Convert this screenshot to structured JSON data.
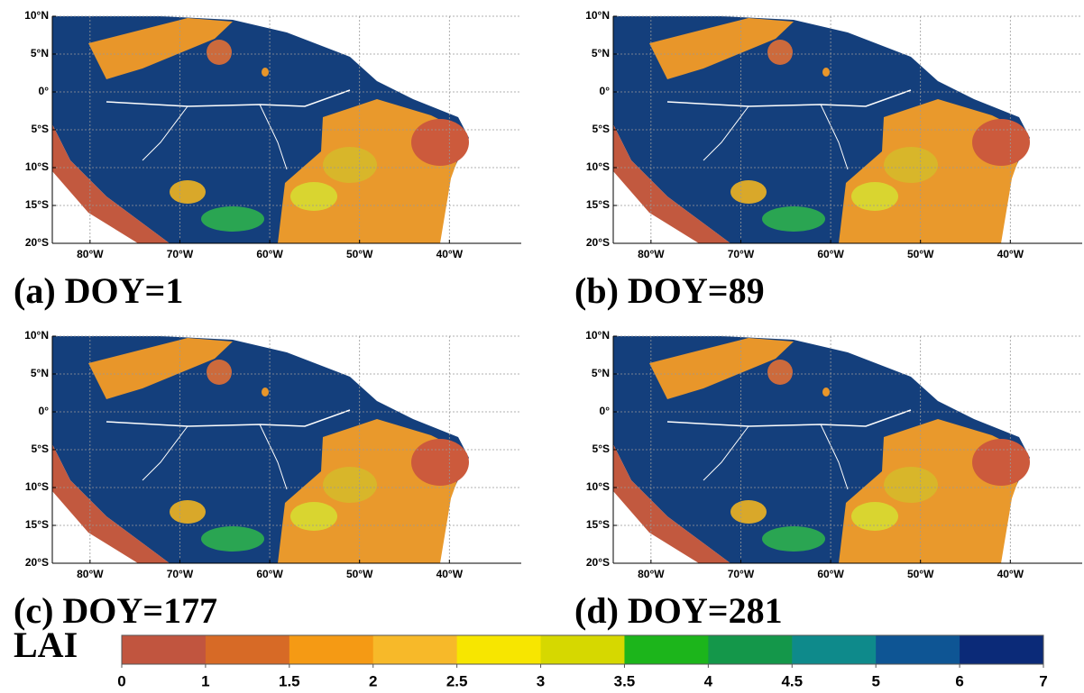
{
  "panels": [
    {
      "label": "(a) DOY=1"
    },
    {
      "label": "(b) DOY=89"
    },
    {
      "label": "(c) DOY=177"
    },
    {
      "label": "(d) DOY=281"
    }
  ],
  "map": {
    "ylim": [
      -20,
      10
    ],
    "xlim": [
      -84.2,
      -32
    ],
    "lat_ticks": [
      {
        "value": 10,
        "label": "10°N"
      },
      {
        "value": 5,
        "label": "5°N"
      },
      {
        "value": 0,
        "label": "0°"
      },
      {
        "value": -5,
        "label": "5°S"
      },
      {
        "value": -10,
        "label": "10°S"
      },
      {
        "value": -15,
        "label": "15°S"
      },
      {
        "value": -20,
        "label": "20°S"
      }
    ],
    "lon_ticks": [
      {
        "value": -80,
        "label": "80°W"
      },
      {
        "value": -70,
        "label": "70°W"
      },
      {
        "value": -60,
        "label": "60°W"
      },
      {
        "value": -50,
        "label": "50°W"
      },
      {
        "value": -40,
        "label": "40°W"
      }
    ]
  },
  "colorbar": {
    "label": "LAI",
    "ticks": [
      0,
      1,
      1.5,
      2,
      2.5,
      3,
      3.5,
      4,
      4.5,
      5,
      6,
      7
    ],
    "colors": [
      "#c1553f",
      "#d76a26",
      "#f59a14",
      "#f7b929",
      "#f7e600",
      "#d6d800",
      "#1cb51b",
      "#14974a",
      "#0e8a8b",
      "#0e5594",
      "#0b2a78"
    ]
  }
}
